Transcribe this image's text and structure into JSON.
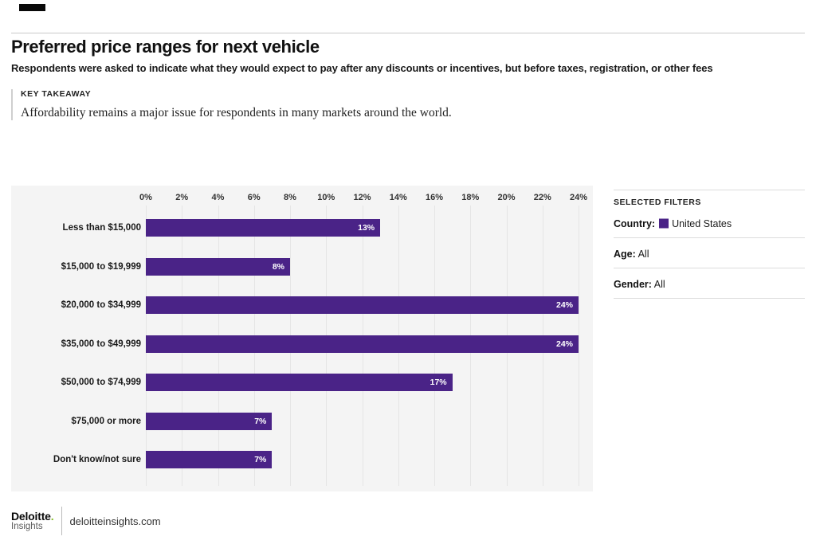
{
  "header": {
    "title": "Preferred price ranges for next vehicle",
    "subtitle": "Respondents were asked to indicate what they would expect to pay after any discounts or incentives, but before taxes, registration, or other fees"
  },
  "key_takeaway": {
    "label": "KEY TAKEAWAY",
    "text": "Affordability remains a major issue for respondents in many markets around the world."
  },
  "chart_data": {
    "type": "bar",
    "orientation": "horizontal",
    "title": "Preferred price ranges for next vehicle",
    "categories": [
      "Less than $15,000",
      "$15,000 to $19,999",
      "$20,000 to $34,999",
      "$35,000 to $49,999",
      "$50,000 to $74,999",
      "$75,000 or more",
      "Don't know/not sure"
    ],
    "values": [
      13,
      8,
      24,
      24,
      17,
      7,
      7
    ],
    "value_labels": [
      "13%",
      "8%",
      "24%",
      "24%",
      "17%",
      "7%",
      "7%"
    ],
    "x_ticks": [
      "0%",
      "2%",
      "4%",
      "6%",
      "8%",
      "10%",
      "12%",
      "14%",
      "16%",
      "18%",
      "20%",
      "22%",
      "24%"
    ],
    "xlim": [
      0,
      24
    ],
    "xlabel": "",
    "ylabel": "",
    "grid": true,
    "legend": "none",
    "bar_color": "#4a2387",
    "value_label_position": "inside-end",
    "value_label_color": "#ffffff"
  },
  "filters": {
    "heading": "SELECTED FILTERS",
    "items": [
      {
        "label": "Country:",
        "value": "United States",
        "swatch": "#4a2387"
      },
      {
        "label": "Age:",
        "value": "All",
        "swatch": null
      },
      {
        "label": "Gender:",
        "value": "All",
        "swatch": null
      }
    ]
  },
  "footer": {
    "brand": "Deloitte",
    "brand_dot": ".",
    "brand_sub": "Insights",
    "site": "deloitteinsights.com"
  },
  "colors": {
    "bar_purple": "#4a2387",
    "deloitte_green": "#86BC25",
    "panel_bg": "#f4f4f4",
    "gridline": "#e5e5e5",
    "divider": "#dcdcdc"
  }
}
